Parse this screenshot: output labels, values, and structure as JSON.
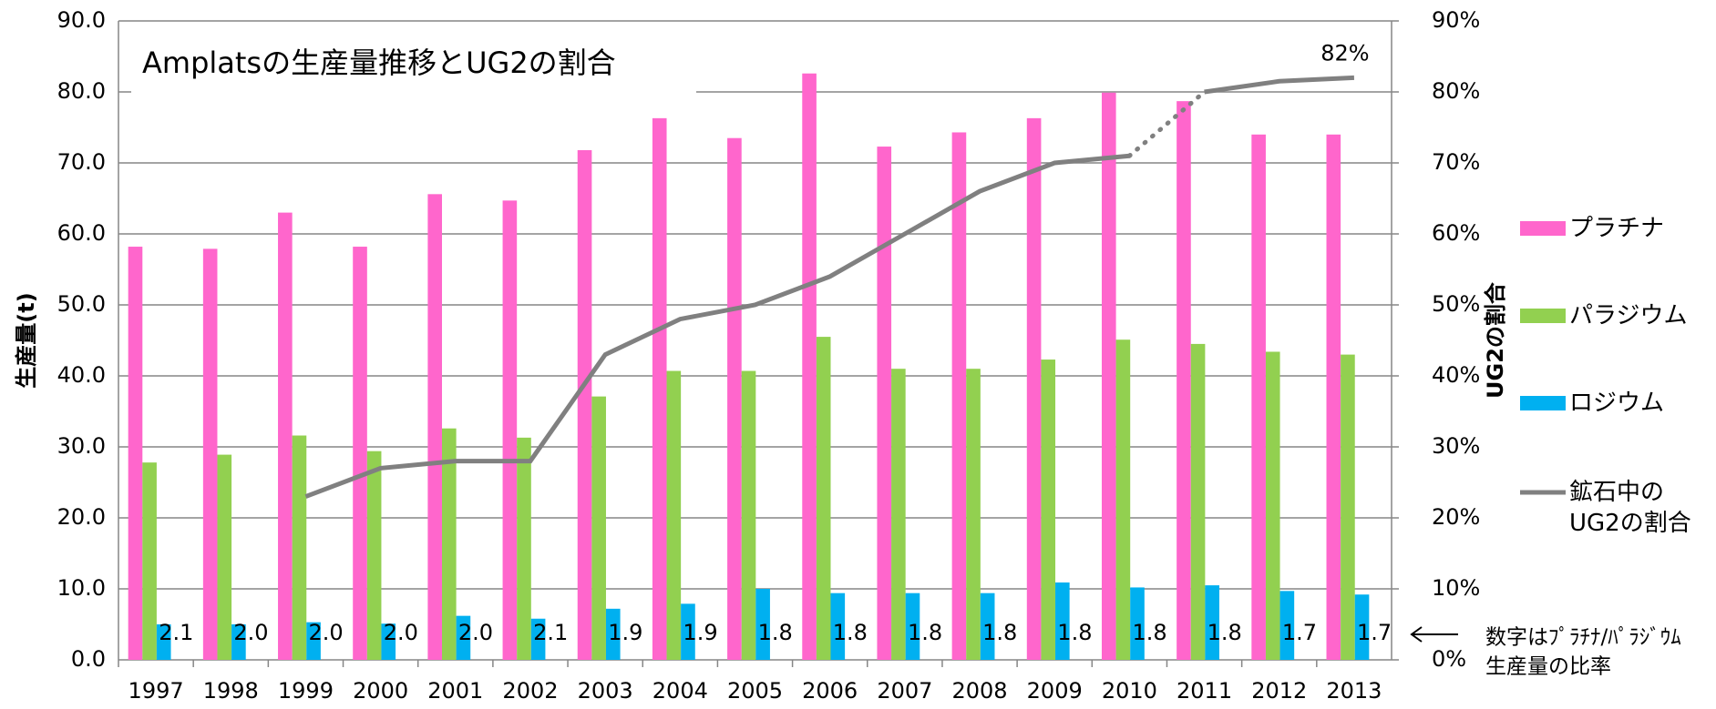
{
  "chart_data": {
    "type": "bar",
    "title": "Amplatsの生産量推移とUG2の割合",
    "y_label": "生産量(t)",
    "y2_label": "UG2の割合",
    "categories": [
      "1997",
      "1998",
      "1999",
      "2000",
      "2001",
      "2002",
      "2003",
      "2004",
      "2005",
      "2006",
      "2007",
      "2008",
      "2009",
      "2010",
      "2011",
      "2012",
      "2013"
    ],
    "series": [
      {
        "name": "プラチナ",
        "color": "#ff66cc",
        "values": [
          58.2,
          57.9,
          63.0,
          58.2,
          65.6,
          64.7,
          71.8,
          76.3,
          73.5,
          82.6,
          72.3,
          74.3,
          76.3,
          79.9,
          78.7,
          74.0,
          74.0
        ]
      },
      {
        "name": "パラジウム",
        "color": "#92d050",
        "values": [
          27.8,
          28.9,
          31.6,
          29.4,
          32.6,
          31.3,
          37.1,
          40.7,
          40.7,
          45.5,
          41.0,
          41.0,
          42.3,
          45.1,
          44.5,
          43.4,
          43.0
        ]
      },
      {
        "name": "ロジウム",
        "color": "#00b0f0",
        "values": [
          5.0,
          5.0,
          5.3,
          5.1,
          6.2,
          5.8,
          7.2,
          7.9,
          10.0,
          9.4,
          9.4,
          9.4,
          10.9,
          10.2,
          10.5,
          9.7,
          9.2
        ]
      },
      {
        "name": "鉱石中のUG2の割合",
        "type": "line",
        "axis": "y2",
        "color": "#808080",
        "values": [
          null,
          null,
          23,
          27,
          28,
          28,
          43,
          48,
          50,
          54,
          60,
          66,
          70,
          71,
          80,
          81.5,
          82
        ],
        "value_labels": [
          null,
          null,
          null,
          null,
          null,
          null,
          null,
          null,
          null,
          null,
          null,
          null,
          null,
          null,
          null,
          null,
          "82%"
        ],
        "dotted_segment": [
          13,
          14
        ]
      }
    ],
    "ratio_labels": [
      "2.1",
      "2.0",
      "2.0",
      "2.0",
      "2.0",
      "2.1",
      "1.9",
      "1.9",
      "1.8",
      "1.8",
      "1.8",
      "1.8",
      "1.8",
      "1.8",
      "1.8",
      "1.7",
      "1.7"
    ],
    "note": [
      "数字はﾌﾟﾗﾁﾅ/ﾊﾟﾗｼﾞｳﾑ",
      "生産量の比率"
    ],
    "ylim": [
      0,
      90
    ],
    "yticks": [
      {
        "value": 0,
        "label": "0.0"
      },
      {
        "value": 10,
        "label": "10.0"
      },
      {
        "value": 20,
        "label": "20.0"
      },
      {
        "value": 30,
        "label": "30.0"
      },
      {
        "value": 40,
        "label": "40.0"
      },
      {
        "value": 50,
        "label": "50.0"
      },
      {
        "value": 60,
        "label": "60.0"
      },
      {
        "value": 70,
        "label": "70.0"
      },
      {
        "value": 80,
        "label": "80.0"
      },
      {
        "value": 90,
        "label": "90.0"
      }
    ],
    "y2lim": [
      0,
      90
    ],
    "y2ticks": [
      {
        "value": 0,
        "label": "0%"
      },
      {
        "value": 10,
        "label": "10%"
      },
      {
        "value": 20,
        "label": "20%"
      },
      {
        "value": 30,
        "label": "30%"
      },
      {
        "value": 40,
        "label": "40%"
      },
      {
        "value": 50,
        "label": "50%"
      },
      {
        "value": 60,
        "label": "60%"
      },
      {
        "value": 70,
        "label": "70%"
      },
      {
        "value": 80,
        "label": "80%"
      },
      {
        "value": 90,
        "label": "90%"
      }
    ],
    "grid": true,
    "legend": "right"
  }
}
